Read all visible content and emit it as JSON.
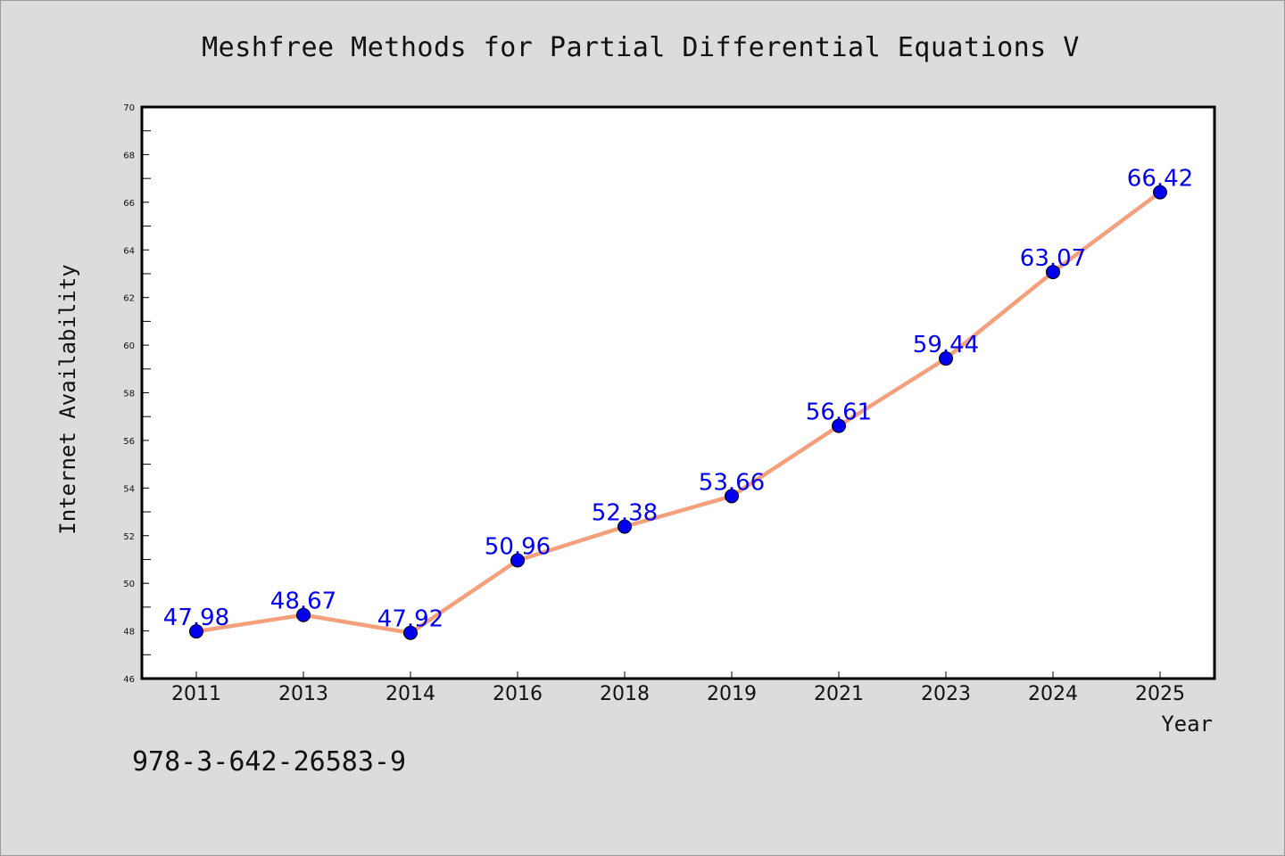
{
  "chart_data": {
    "type": "line",
    "title": "Meshfree Methods for Partial Differential Equations V",
    "xlabel": "Year",
    "ylabel": "Internet Availability",
    "categories": [
      "2011",
      "2013",
      "2014",
      "2016",
      "2018",
      "2019",
      "2021",
      "2023",
      "2024",
      "2025"
    ],
    "series": [
      {
        "values": [
          47.98,
          48.67,
          47.92,
          50.96,
          52.38,
          53.66,
          56.61,
          59.44,
          63.07,
          66.42
        ],
        "line_color": "#f4a07c",
        "marker_color": "#0000ee",
        "label_color": "#0000ee"
      }
    ],
    "data_labels": [
      "47.98",
      "48.67",
      "47.92",
      "50.96",
      "52.38",
      "53.66",
      "56.61",
      "59.44",
      "63.07",
      "66.42"
    ],
    "ylim": [
      46,
      70
    ],
    "yticks": [
      "46",
      "48",
      "50",
      "52",
      "54",
      "56",
      "58",
      "60",
      "62",
      "64",
      "66",
      "68",
      "70"
    ],
    "grid": false,
    "legend": "none"
  },
  "footer": {
    "isbn": "978-3-642-26583-9"
  }
}
